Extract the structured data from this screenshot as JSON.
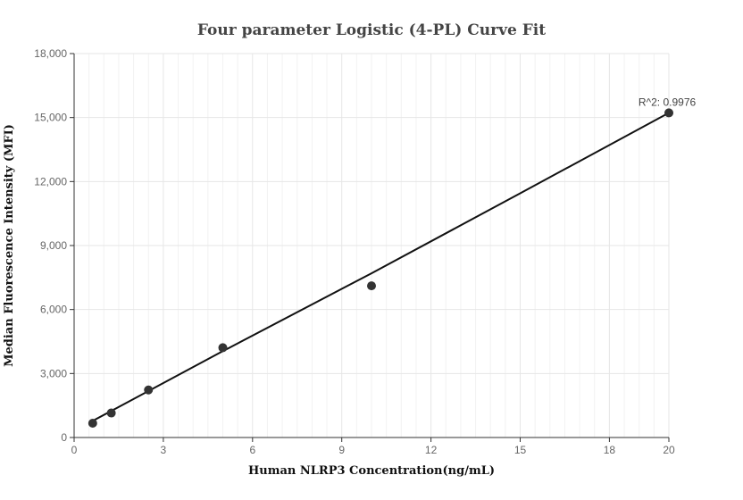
{
  "chart_data": {
    "type": "scatter",
    "title": "Four parameter Logistic (4-PL) Curve Fit",
    "xlabel": "Human NLRP3 Concentration(ng/mL)",
    "ylabel": "Median Fluorescence Intensity (MFI)",
    "xlim": [
      0,
      20
    ],
    "ylim": [
      0,
      18000
    ],
    "x_ticks": [
      0,
      3,
      6,
      9,
      12,
      15,
      18,
      20
    ],
    "x_tick_labels": [
      "0",
      "3",
      "6",
      "9",
      "12",
      "15",
      "18",
      "20"
    ],
    "y_ticks": [
      0,
      3000,
      6000,
      9000,
      12000,
      15000,
      18000
    ],
    "y_tick_labels": [
      "0",
      "3,000",
      "6,000",
      "9,000",
      "12,000",
      "15,000",
      "18,000"
    ],
    "grid": true,
    "points": {
      "x": [
        0.625,
        1.25,
        2.5,
        5,
        10,
        20
      ],
      "y": [
        670,
        1150,
        2230,
        4210,
        7110,
        15220
      ]
    },
    "fit_curve": {
      "x": [
        0.625,
        5,
        10,
        15,
        20
      ],
      "y": [
        780,
        4050,
        7700,
        11450,
        15220
      ]
    },
    "annotation": "R^2: 0.9976",
    "colors": {
      "points": "#333333",
      "curve": "#111111",
      "grid": "#e6e6e6",
      "axis": "#333333"
    }
  }
}
